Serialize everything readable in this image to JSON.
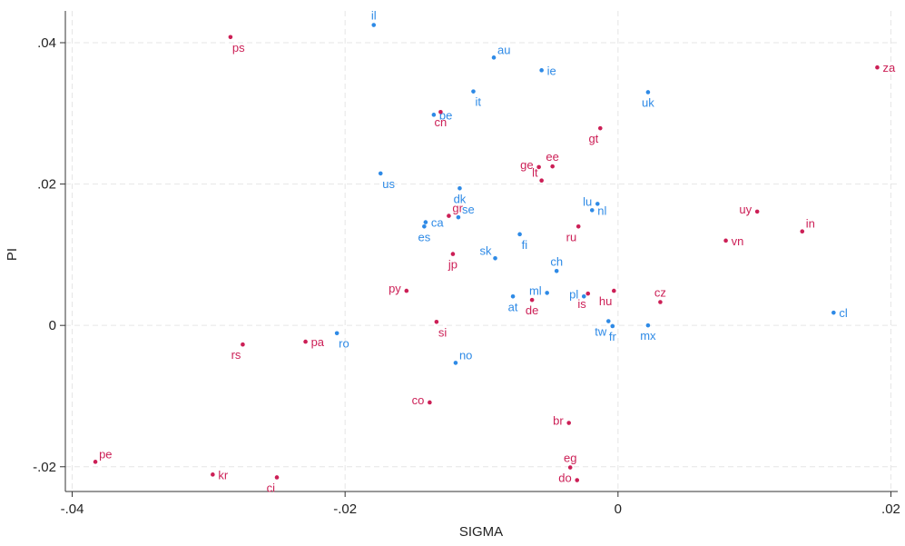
{
  "chart_data": {
    "type": "scatter",
    "title": "",
    "xlabel": "SIGMA",
    "ylabel": "PI",
    "xlim": [
      -0.0405,
      0.0205
    ],
    "ylim": [
      -0.0235,
      0.0445
    ],
    "xticks": [
      -0.04,
      -0.02,
      0,
      0.02
    ],
    "xtick_labels": [
      "-.04",
      "-.02",
      "0",
      ".02"
    ],
    "yticks": [
      -0.02,
      0,
      0.02,
      0.04
    ],
    "ytick_labels": [
      "-.02",
      "0",
      ".02",
      ".04"
    ],
    "grid": true,
    "colors": {
      "blue": "#2e8ae6",
      "red": "#cc1f56"
    },
    "points": [
      {
        "label": "il",
        "x": -0.0179,
        "y": 0.0425,
        "color": "blue",
        "pos": "above"
      },
      {
        "label": "ps",
        "x": -0.0284,
        "y": 0.0408,
        "color": "red",
        "pos": "below-right"
      },
      {
        "label": "au",
        "x": -0.0091,
        "y": 0.0379,
        "color": "blue",
        "pos": "above-right"
      },
      {
        "label": "ie",
        "x": -0.0056,
        "y": 0.0361,
        "color": "blue",
        "pos": "right"
      },
      {
        "label": "za",
        "x": 0.019,
        "y": 0.0365,
        "color": "red",
        "pos": "right"
      },
      {
        "label": "it",
        "x": -0.0106,
        "y": 0.0331,
        "color": "blue",
        "pos": "below-right"
      },
      {
        "label": "uk",
        "x": 0.0022,
        "y": 0.033,
        "color": "blue",
        "pos": "below"
      },
      {
        "label": "be",
        "x": -0.0135,
        "y": 0.0298,
        "color": "blue",
        "pos": "right"
      },
      {
        "label": "cn",
        "x": -0.013,
        "y": 0.0302,
        "color": "red",
        "pos": "below"
      },
      {
        "label": "gt",
        "x": -0.0013,
        "y": 0.0279,
        "color": "red",
        "pos": "below-left"
      },
      {
        "label": "ge",
        "x": -0.0058,
        "y": 0.0224,
        "color": "red",
        "pos": "left"
      },
      {
        "label": "ee",
        "x": -0.0048,
        "y": 0.0225,
        "color": "red",
        "pos": "above"
      },
      {
        "label": "lt",
        "x": -0.0056,
        "y": 0.0205,
        "color": "red",
        "pos": "above-left"
      },
      {
        "label": "us",
        "x": -0.0174,
        "y": 0.0215,
        "color": "blue",
        "pos": "below-right"
      },
      {
        "label": "dk",
        "x": -0.0116,
        "y": 0.0194,
        "color": "blue",
        "pos": "below"
      },
      {
        "label": "lu",
        "x": -0.0015,
        "y": 0.0172,
        "color": "blue",
        "pos": "left"
      },
      {
        "label": "nl",
        "x": -0.0019,
        "y": 0.0163,
        "color": "blue",
        "pos": "right"
      },
      {
        "label": "uy",
        "x": 0.0102,
        "y": 0.0161,
        "color": "red",
        "pos": "left"
      },
      {
        "label": "gr",
        "x": -0.0124,
        "y": 0.0155,
        "color": "red",
        "pos": "above-right"
      },
      {
        "label": "se",
        "x": -0.0117,
        "y": 0.0153,
        "color": "blue",
        "pos": "above-right"
      },
      {
        "label": "ca",
        "x": -0.0141,
        "y": 0.0146,
        "color": "blue",
        "pos": "right"
      },
      {
        "label": "es",
        "x": -0.0142,
        "y": 0.014,
        "color": "blue",
        "pos": "below"
      },
      {
        "label": "ru",
        "x": -0.0029,
        "y": 0.014,
        "color": "red",
        "pos": "below-left"
      },
      {
        "label": "in",
        "x": 0.0135,
        "y": 0.0133,
        "color": "red",
        "pos": "above-right"
      },
      {
        "label": "fi",
        "x": -0.0072,
        "y": 0.0129,
        "color": "blue",
        "pos": "below-right"
      },
      {
        "label": "vn",
        "x": 0.0079,
        "y": 0.012,
        "color": "red",
        "pos": "right"
      },
      {
        "label": "jp",
        "x": -0.0121,
        "y": 0.0101,
        "color": "red",
        "pos": "below"
      },
      {
        "label": "sk",
        "x": -0.009,
        "y": 0.0095,
        "color": "blue",
        "pos": "above-left"
      },
      {
        "label": "ch",
        "x": -0.0045,
        "y": 0.0077,
        "color": "blue",
        "pos": "above"
      },
      {
        "label": "py",
        "x": -0.0155,
        "y": 0.0049,
        "color": "red",
        "pos": "left"
      },
      {
        "label": "hu",
        "x": -0.0003,
        "y": 0.0049,
        "color": "red",
        "pos": "below-left"
      },
      {
        "label": "pl",
        "x": -0.0025,
        "y": 0.0041,
        "color": "blue",
        "pos": "left"
      },
      {
        "label": "is",
        "x": -0.0022,
        "y": 0.0045,
        "color": "red",
        "pos": "below-left"
      },
      {
        "label": "ml",
        "x": -0.0052,
        "y": 0.0046,
        "color": "blue",
        "pos": "left"
      },
      {
        "label": "de",
        "x": -0.0063,
        "y": 0.0036,
        "color": "red",
        "pos": "below"
      },
      {
        "label": "at",
        "x": -0.0077,
        "y": 0.0041,
        "color": "blue",
        "pos": "below"
      },
      {
        "label": "cz",
        "x": 0.0031,
        "y": 0.0033,
        "color": "red",
        "pos": "above"
      },
      {
        "label": "cl",
        "x": 0.0158,
        "y": 0.0018,
        "color": "blue",
        "pos": "right"
      },
      {
        "label": "tw",
        "x": -0.0007,
        "y": 0.0006,
        "color": "blue",
        "pos": "below-left"
      },
      {
        "label": "fr",
        "x": -0.0004,
        "y": -0.0001,
        "color": "blue",
        "pos": "below"
      },
      {
        "label": "mx",
        "x": 0.0022,
        "y": 0.0,
        "color": "blue",
        "pos": "below"
      },
      {
        "label": "si",
        "x": -0.0133,
        "y": 0.0005,
        "color": "red",
        "pos": "below-right"
      },
      {
        "label": "ro",
        "x": -0.0206,
        "y": -0.0011,
        "color": "blue",
        "pos": "below-right"
      },
      {
        "label": "pa",
        "x": -0.0229,
        "y": -0.0023,
        "color": "red",
        "pos": "right"
      },
      {
        "label": "rs",
        "x": -0.0275,
        "y": -0.0027,
        "color": "red",
        "pos": "below-left"
      },
      {
        "label": "no",
        "x": -0.0119,
        "y": -0.0053,
        "color": "blue",
        "pos": "above-right"
      },
      {
        "label": "co",
        "x": -0.0138,
        "y": -0.0109,
        "color": "red",
        "pos": "left"
      },
      {
        "label": "br",
        "x": -0.0036,
        "y": -0.0138,
        "color": "red",
        "pos": "left"
      },
      {
        "label": "pe",
        "x": -0.0383,
        "y": -0.0193,
        "color": "red",
        "pos": "above-right"
      },
      {
        "label": "kr",
        "x": -0.0297,
        "y": -0.0211,
        "color": "red",
        "pos": "right"
      },
      {
        "label": "ci",
        "x": -0.025,
        "y": -0.0215,
        "color": "red",
        "pos": "below-left"
      },
      {
        "label": "eg",
        "x": -0.0035,
        "y": -0.0201,
        "color": "red",
        "pos": "above"
      },
      {
        "label": "do",
        "x": -0.003,
        "y": -0.0219,
        "color": "red",
        "pos": "left"
      }
    ]
  }
}
